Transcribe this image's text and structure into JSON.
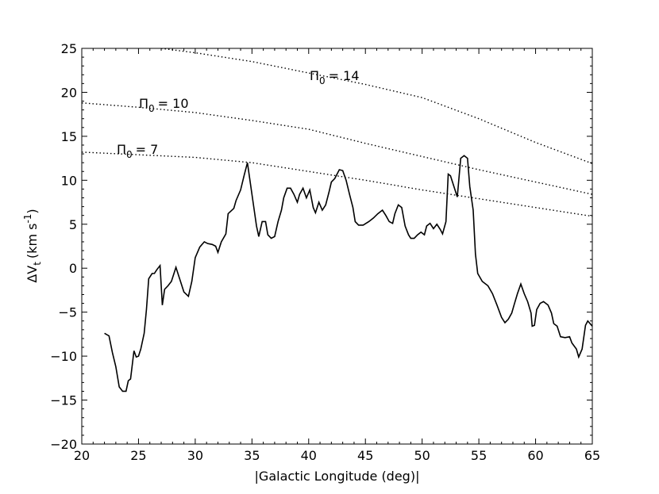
{
  "chart_data": {
    "type": "line",
    "xlabel": "|Galactic Longitude (deg)|",
    "ylabel": {
      "main": "ΔV",
      "sub": "t",
      "unit": "(km s",
      "sup": "-1",
      "end": ")"
    },
    "xlim": [
      20,
      65
    ],
    "ylim": [
      -20,
      25
    ],
    "xticks": [
      20,
      25,
      30,
      35,
      40,
      45,
      50,
      55,
      60,
      65
    ],
    "yticks": [
      {
        "value": -20,
        "label": "−20"
      },
      {
        "value": -15,
        "label": "−15"
      },
      {
        "value": -10,
        "label": "−10"
      },
      {
        "value": -5,
        "label": "−5"
      },
      0,
      5,
      10,
      15,
      20,
      25
    ],
    "series": [
      {
        "color": "#000000",
        "linestyle": "solid",
        "x": [
          22.0,
          22.4,
          22.7,
          23.0,
          23.3,
          23.6,
          23.9,
          24.1,
          24.3,
          24.6,
          24.8,
          25.0,
          25.2,
          25.5,
          25.7,
          25.9,
          26.2,
          26.4,
          26.6,
          26.9,
          27.1,
          27.3,
          27.6,
          27.9,
          28.3,
          28.6,
          29.0,
          29.4,
          29.7,
          30.0,
          30.4,
          30.8,
          31.1,
          31.5,
          31.8,
          32.0,
          32.3,
          32.7,
          32.9,
          33.4,
          33.6,
          34.0,
          34.3,
          34.6,
          34.8,
          35.1,
          35.4,
          35.6,
          35.9,
          36.2,
          36.4,
          36.7,
          37.0,
          37.3,
          37.6,
          37.8,
          38.1,
          38.4,
          38.7,
          39.0,
          39.2,
          39.5,
          39.8,
          40.1,
          40.4,
          40.6,
          40.9,
          41.2,
          41.5,
          41.8,
          42.0,
          42.3,
          42.7,
          43.0,
          43.3,
          43.6,
          43.9,
          44.1,
          44.4,
          44.8,
          45.3,
          45.7,
          46.1,
          46.5,
          46.8,
          47.1,
          47.4,
          47.6,
          47.9,
          48.2,
          48.5,
          48.8,
          49.0,
          49.3,
          49.6,
          49.9,
          50.2,
          50.4,
          50.7,
          51.0,
          51.3,
          51.6,
          51.8,
          52.1,
          52.3,
          52.5,
          52.8,
          53.1,
          53.4,
          53.7,
          54.0,
          54.2,
          54.5,
          54.7,
          54.9,
          55.3,
          55.8,
          56.2,
          56.6,
          57.0,
          57.3,
          57.6,
          57.9,
          58.1,
          58.4,
          58.7,
          59.0,
          59.3,
          59.6,
          59.7,
          59.9,
          60.1,
          60.4,
          60.7,
          61.1,
          61.4,
          61.6,
          61.9,
          62.2,
          62.6,
          63.0,
          63.2,
          63.6,
          63.8,
          64.1,
          64.4,
          64.6,
          65.0
        ],
        "values": [
          -7.4,
          -7.7,
          -9.6,
          -11.2,
          -13.5,
          -14.0,
          -14.0,
          -12.8,
          -12.6,
          -9.4,
          -10.1,
          -10.0,
          -9.2,
          -7.4,
          -4.7,
          -1.2,
          -0.6,
          -0.6,
          -0.2,
          0.3,
          -4.2,
          -2.4,
          -2.0,
          -1.5,
          0.1,
          -1.1,
          -2.7,
          -3.2,
          -1.5,
          1.2,
          2.4,
          3.0,
          2.8,
          2.7,
          2.5,
          1.8,
          3.0,
          3.9,
          6.2,
          6.8,
          7.7,
          8.9,
          10.5,
          12.0,
          10.2,
          7.5,
          4.8,
          3.6,
          5.3,
          5.3,
          3.8,
          3.4,
          3.6,
          5.3,
          6.6,
          8.0,
          9.1,
          9.1,
          8.4,
          7.5,
          8.4,
          9.1,
          8.0,
          8.9,
          6.9,
          6.3,
          7.5,
          6.6,
          7.2,
          8.7,
          9.8,
          10.2,
          11.2,
          11.1,
          10.0,
          8.4,
          6.9,
          5.3,
          4.9,
          4.9,
          5.3,
          5.7,
          6.2,
          6.6,
          6.0,
          5.3,
          5.1,
          6.2,
          7.2,
          6.9,
          4.8,
          3.8,
          3.4,
          3.4,
          3.8,
          4.1,
          3.8,
          4.8,
          5.1,
          4.5,
          5.0,
          4.4,
          3.9,
          5.3,
          10.7,
          10.5,
          9.3,
          8.1,
          12.5,
          12.8,
          12.5,
          9.3,
          6.6,
          1.6,
          -0.6,
          -1.5,
          -2.0,
          -2.9,
          -4.2,
          -5.6,
          -6.2,
          -5.8,
          -5.1,
          -4.2,
          -2.9,
          -1.8,
          -2.9,
          -3.8,
          -5.1,
          -6.6,
          -6.5,
          -4.7,
          -4.0,
          -3.8,
          -4.2,
          -5.1,
          -6.3,
          -6.6,
          -7.8,
          -7.9,
          -7.8,
          -8.5,
          -9.2,
          -10.1,
          -9.2,
          -6.5,
          -6.0,
          -6.6
        ]
      },
      {
        "color": "#000000",
        "linestyle": "dotted",
        "label": {
          "symbol": "Π",
          "sub": "0",
          "text": "= 14"
        },
        "x": [
          27,
          30,
          35,
          40,
          45,
          50,
          55,
          60,
          65
        ],
        "values": [
          25.0,
          24.5,
          23.5,
          22.2,
          20.9,
          19.4,
          17.0,
          14.3,
          11.9
        ]
      },
      {
        "color": "#000000",
        "linestyle": "dotted",
        "label": {
          "symbol": "Π",
          "sub": "0",
          "text": "= 10"
        },
        "x": [
          20,
          25,
          30,
          35,
          40,
          45,
          50,
          55,
          60,
          65
        ],
        "values": [
          18.8,
          18.3,
          17.7,
          16.8,
          15.8,
          14.2,
          12.7,
          11.2,
          9.8,
          8.4
        ]
      },
      {
        "color": "#000000",
        "linestyle": "dotted",
        "label": {
          "symbol": "Π",
          "sub": "0",
          "text": "= 7"
        },
        "x": [
          20,
          30,
          35,
          40,
          45,
          50,
          55,
          60,
          65
        ],
        "values": [
          13.2,
          12.6,
          12.0,
          11.0,
          10.0,
          8.9,
          7.9,
          6.9,
          5.9
        ]
      }
    ]
  }
}
